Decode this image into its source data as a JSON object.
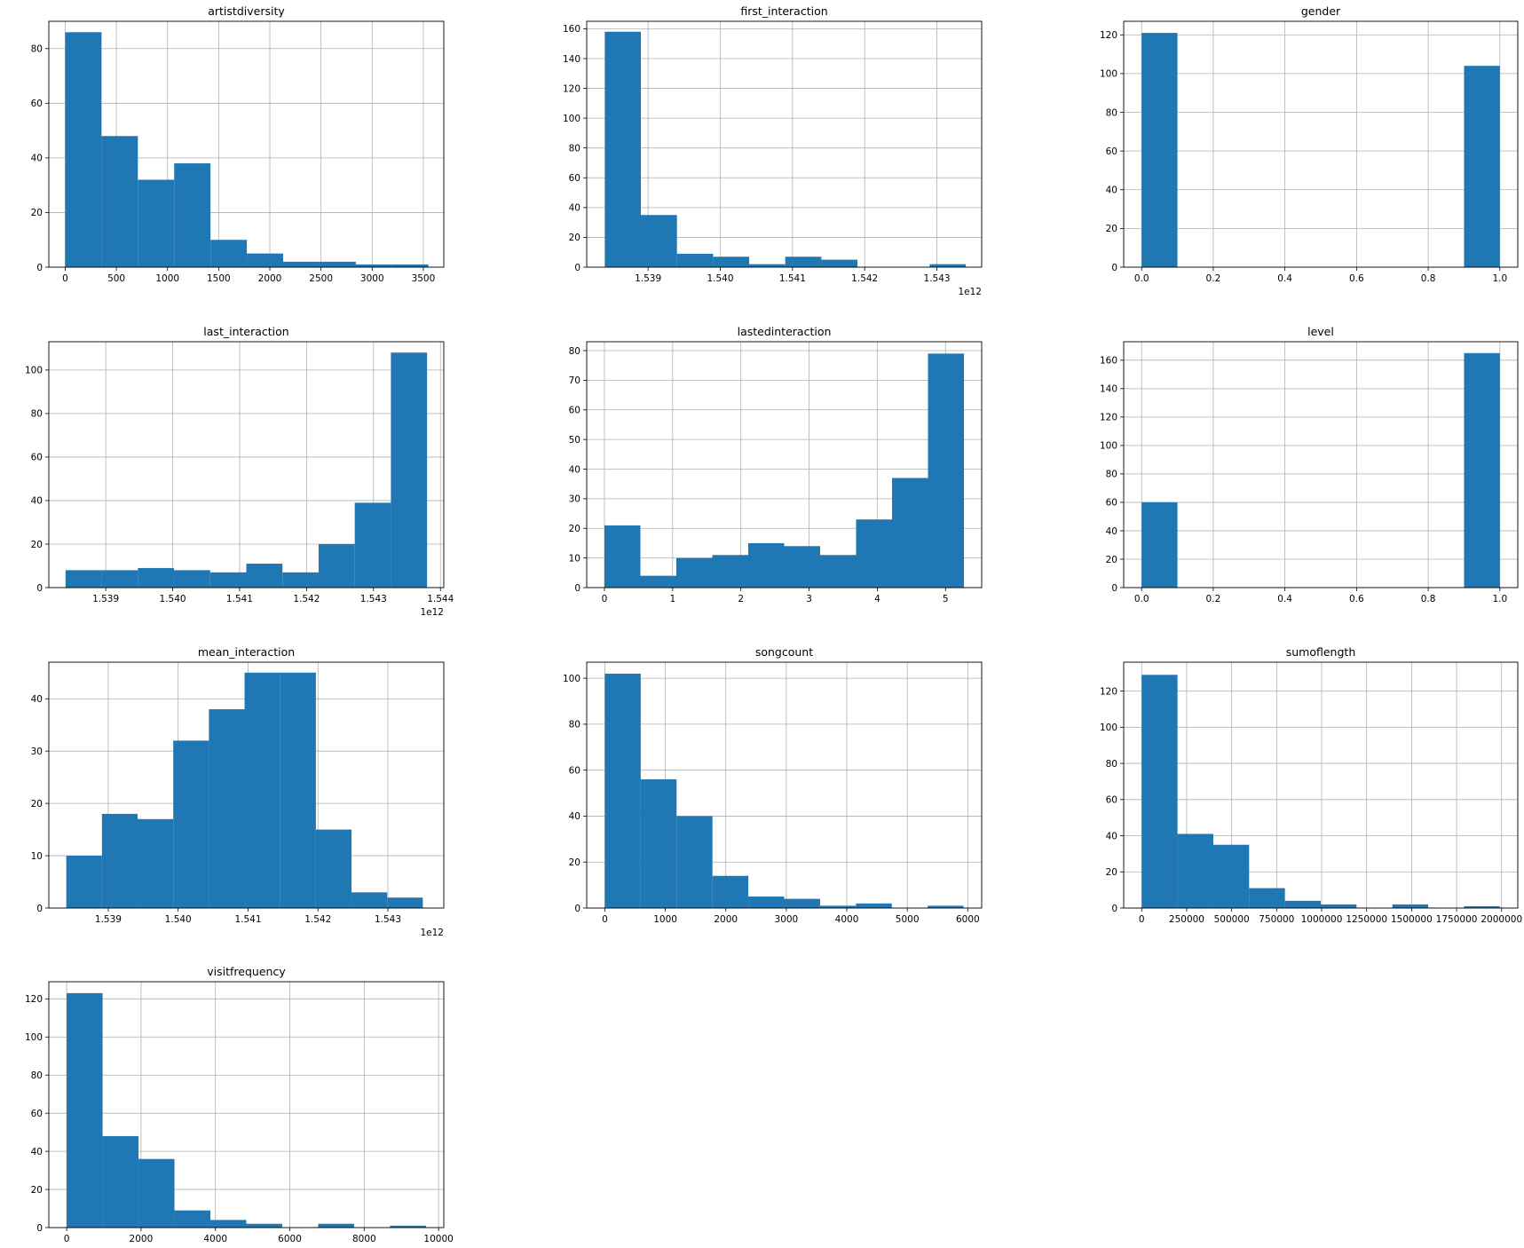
{
  "bar_color": "#1f77b4",
  "chart_data": [
    {
      "type": "bar",
      "title": "artistdiversity",
      "xlim": [
        -160,
        3700
      ],
      "ylim": [
        0,
        90
      ],
      "xticks": [
        0,
        500,
        1000,
        1500,
        2000,
        2500,
        3000,
        3500
      ],
      "xtick_labels": [
        "0",
        "500",
        "1000",
        "1500",
        "2000",
        "2500",
        "3000",
        "3500"
      ],
      "yticks": [
        0,
        20,
        40,
        60,
        80
      ],
      "offset_label": "",
      "bin_edges": [
        0,
        355,
        710,
        1065,
        1420,
        1775,
        2130,
        2485,
        2840,
        3195,
        3550
      ],
      "counts": [
        86,
        48,
        32,
        38,
        10,
        5,
        2,
        2,
        1,
        1
      ]
    },
    {
      "type": "bar",
      "title": "first_interaction",
      "xlim": [
        1538.15,
        1543.62
      ],
      "ylim": [
        0,
        165
      ],
      "xticks": [
        1539,
        1540,
        1541,
        1542,
        1543
      ],
      "xtick_labels": [
        "1.539",
        "1.540",
        "1.541",
        "1.542",
        "1.543"
      ],
      "yticks": [
        0,
        20,
        40,
        60,
        80,
        100,
        120,
        140,
        160
      ],
      "offset_label": "1e12",
      "bin_edges": [
        1538.4,
        1538.9,
        1539.4,
        1539.9,
        1540.4,
        1540.9,
        1541.4,
        1541.9,
        1542.4,
        1542.9,
        1543.4
      ],
      "counts": [
        158,
        35,
        9,
        7,
        2,
        7,
        5,
        0,
        0,
        2
      ]
    },
    {
      "type": "bar",
      "title": "gender",
      "xlim": [
        -0.05,
        1.05
      ],
      "ylim": [
        0,
        127
      ],
      "xticks": [
        0.0,
        0.2,
        0.4,
        0.6,
        0.8,
        1.0
      ],
      "xtick_labels": [
        "0.0",
        "0.2",
        "0.4",
        "0.6",
        "0.8",
        "1.0"
      ],
      "yticks": [
        0,
        20,
        40,
        60,
        80,
        100,
        120
      ],
      "offset_label": "",
      "bin_edges": [
        0.0,
        0.1,
        0.2,
        0.3,
        0.4,
        0.5,
        0.6,
        0.7,
        0.8,
        0.9,
        1.0
      ],
      "counts": [
        121,
        0,
        0,
        0,
        0,
        0,
        0,
        0,
        0,
        104
      ]
    },
    {
      "type": "bar",
      "title": "last_interaction",
      "xlim": [
        1538.15,
        1544.05
      ],
      "ylim": [
        0,
        113
      ],
      "xticks": [
        1539,
        1540,
        1541,
        1542,
        1543,
        1544
      ],
      "xtick_labels": [
        "1.539",
        "1.540",
        "1.541",
        "1.542",
        "1.543",
        "1.544"
      ],
      "yticks": [
        0,
        20,
        40,
        60,
        80,
        100
      ],
      "offset_label": "1e12",
      "bin_edges": [
        1538.4,
        1538.94,
        1539.48,
        1540.02,
        1540.56,
        1541.1,
        1541.64,
        1542.18,
        1542.72,
        1543.26,
        1543.8
      ],
      "counts": [
        8,
        8,
        9,
        8,
        7,
        11,
        7,
        20,
        39,
        108
      ]
    },
    {
      "type": "bar",
      "title": "lastedinteraction",
      "xlim": [
        -0.26,
        5.53
      ],
      "ylim": [
        0,
        83
      ],
      "xticks": [
        0,
        1,
        2,
        3,
        4,
        5
      ],
      "xtick_labels": [
        "0",
        "1",
        "2",
        "3",
        "4",
        "5"
      ],
      "yticks": [
        0,
        10,
        20,
        30,
        40,
        50,
        60,
        70,
        80
      ],
      "offset_label": "",
      "bin_edges": [
        0.0,
        0.527,
        1.054,
        1.581,
        2.108,
        2.635,
        3.162,
        3.689,
        4.216,
        4.743,
        5.27
      ],
      "counts": [
        21,
        4,
        10,
        11,
        15,
        14,
        11,
        23,
        37,
        79
      ]
    },
    {
      "type": "bar",
      "title": "level",
      "xlim": [
        -0.05,
        1.05
      ],
      "ylim": [
        0,
        173
      ],
      "xticks": [
        0.0,
        0.2,
        0.4,
        0.6,
        0.8,
        1.0
      ],
      "xtick_labels": [
        "0.0",
        "0.2",
        "0.4",
        "0.6",
        "0.8",
        "1.0"
      ],
      "yticks": [
        0,
        20,
        40,
        60,
        80,
        100,
        120,
        140,
        160
      ],
      "offset_label": "",
      "bin_edges": [
        0.0,
        0.1,
        0.2,
        0.3,
        0.4,
        0.5,
        0.6,
        0.7,
        0.8,
        0.9,
        1.0
      ],
      "counts": [
        60,
        0,
        0,
        0,
        0,
        0,
        0,
        0,
        0,
        165
      ]
    },
    {
      "type": "bar",
      "title": "mean_interaction",
      "xlim": [
        1538.15,
        1543.8
      ],
      "ylim": [
        0,
        47
      ],
      "xticks": [
        1539,
        1540,
        1541,
        1542,
        1543
      ],
      "xtick_labels": [
        "1.539",
        "1.540",
        "1.541",
        "1.542",
        "1.543"
      ],
      "yticks": [
        0,
        10,
        20,
        30,
        40
      ],
      "offset_label": "1e12",
      "bin_edges": [
        1538.4,
        1538.91,
        1539.42,
        1539.93,
        1540.44,
        1540.95,
        1541.46,
        1541.97,
        1542.48,
        1542.99,
        1543.5
      ],
      "counts": [
        10,
        18,
        17,
        32,
        38,
        45,
        45,
        15,
        3,
        2
      ]
    },
    {
      "type": "bar",
      "title": "songcount",
      "xlim": [
        -300,
        6230
      ],
      "ylim": [
        0,
        107
      ],
      "xticks": [
        0,
        1000,
        2000,
        3000,
        4000,
        5000,
        6000
      ],
      "xtick_labels": [
        "0",
        "1000",
        "2000",
        "3000",
        "4000",
        "5000",
        "6000"
      ],
      "yticks": [
        0,
        20,
        40,
        60,
        80,
        100
      ],
      "offset_label": "",
      "bin_edges": [
        0,
        593,
        1186,
        1779,
        2372,
        2965,
        3558,
        4151,
        4744,
        5337,
        5930
      ],
      "counts": [
        102,
        56,
        40,
        14,
        5,
        4,
        1,
        2,
        0,
        1
      ]
    },
    {
      "type": "bar",
      "title": "sumoflength",
      "xlim": [
        -100000,
        2090000
      ],
      "ylim": [
        0,
        136
      ],
      "xticks": [
        0,
        250000,
        500000,
        750000,
        1000000,
        1250000,
        1500000,
        1750000,
        2000000
      ],
      "xtick_labels": [
        "0",
        "250000",
        "500000",
        "750000",
        "1000000",
        "1250000",
        "1500000",
        "1750000",
        "2000000"
      ],
      "yticks": [
        0,
        20,
        40,
        60,
        80,
        100,
        120
      ],
      "offset_label": "",
      "bin_edges": [
        0,
        199000,
        398000,
        597000,
        796000,
        995000,
        1194000,
        1393000,
        1592000,
        1791000,
        1990000
      ],
      "counts": [
        129,
        41,
        35,
        11,
        4,
        2,
        0,
        2,
        0,
        1
      ]
    },
    {
      "type": "bar",
      "title": "visitfrequency",
      "xlim": [
        -480,
        10140
      ],
      "ylim": [
        0,
        129
      ],
      "xticks": [
        0,
        2000,
        4000,
        6000,
        8000,
        10000
      ],
      "xtick_labels": [
        "0",
        "2000",
        "4000",
        "6000",
        "8000",
        "10000"
      ],
      "yticks": [
        0,
        20,
        40,
        60,
        80,
        100,
        120
      ],
      "offset_label": "",
      "bin_edges": [
        0,
        966,
        1932,
        2898,
        3864,
        4830,
        5796,
        6762,
        7728,
        8694,
        9660
      ],
      "counts": [
        123,
        48,
        36,
        9,
        4,
        2,
        0,
        2,
        0,
        1
      ]
    }
  ]
}
